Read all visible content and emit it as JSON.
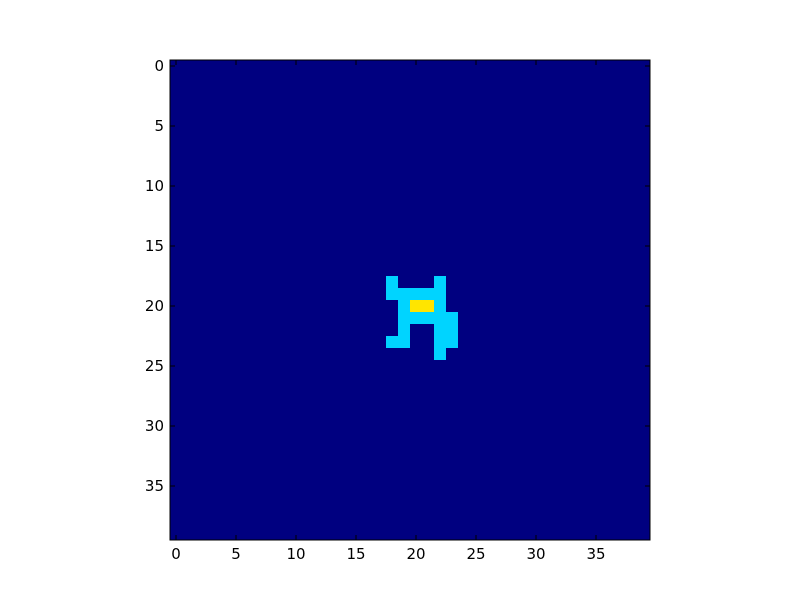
{
  "chart_data": {
    "type": "heatmap",
    "title": "",
    "xlabel": "",
    "ylabel": "",
    "grid": false,
    "colormap": "jet",
    "background_value": 0,
    "colors": {
      "background": "#000080",
      "mid": "#00d4ff",
      "peak": "#ffe500",
      "frame": "#000000"
    },
    "value_colors": {
      "0": "#000080",
      "1": "#00d4ff",
      "2": "#ffe500"
    },
    "shape": [
      40,
      40
    ],
    "xlim": [
      -0.5,
      39.5
    ],
    "ylim": [
      39.5,
      -0.5
    ],
    "xticks": [
      0,
      5,
      10,
      15,
      20,
      25,
      30,
      35
    ],
    "xtick_labels": [
      "0",
      "5",
      "10",
      "15",
      "20",
      "25",
      "30",
      "35"
    ],
    "yticks": [
      0,
      5,
      10,
      15,
      20,
      25,
      30,
      35
    ],
    "ytick_labels": [
      "0",
      "5",
      "10",
      "15",
      "20",
      "25",
      "30",
      "35"
    ],
    "cells": [
      {
        "row": 18,
        "col": 18,
        "value": 1
      },
      {
        "row": 18,
        "col": 22,
        "value": 1
      },
      {
        "row": 19,
        "col": 18,
        "value": 1
      },
      {
        "row": 19,
        "col": 19,
        "value": 1
      },
      {
        "row": 19,
        "col": 20,
        "value": 1
      },
      {
        "row": 19,
        "col": 21,
        "value": 1
      },
      {
        "row": 19,
        "col": 22,
        "value": 1
      },
      {
        "row": 20,
        "col": 19,
        "value": 1
      },
      {
        "row": 20,
        "col": 20,
        "value": 2
      },
      {
        "row": 20,
        "col": 21,
        "value": 2
      },
      {
        "row": 20,
        "col": 22,
        "value": 1
      },
      {
        "row": 21,
        "col": 19,
        "value": 1
      },
      {
        "row": 21,
        "col": 20,
        "value": 1
      },
      {
        "row": 21,
        "col": 21,
        "value": 1
      },
      {
        "row": 21,
        "col": 22,
        "value": 1
      },
      {
        "row": 21,
        "col": 23,
        "value": 1
      },
      {
        "row": 22,
        "col": 19,
        "value": 1
      },
      {
        "row": 22,
        "col": 22,
        "value": 1
      },
      {
        "row": 22,
        "col": 23,
        "value": 1
      },
      {
        "row": 23,
        "col": 18,
        "value": 1
      },
      {
        "row": 23,
        "col": 19,
        "value": 1
      },
      {
        "row": 23,
        "col": 22,
        "value": 1
      },
      {
        "row": 23,
        "col": 23,
        "value": 1
      },
      {
        "row": 24,
        "col": 22,
        "value": 1
      }
    ]
  }
}
